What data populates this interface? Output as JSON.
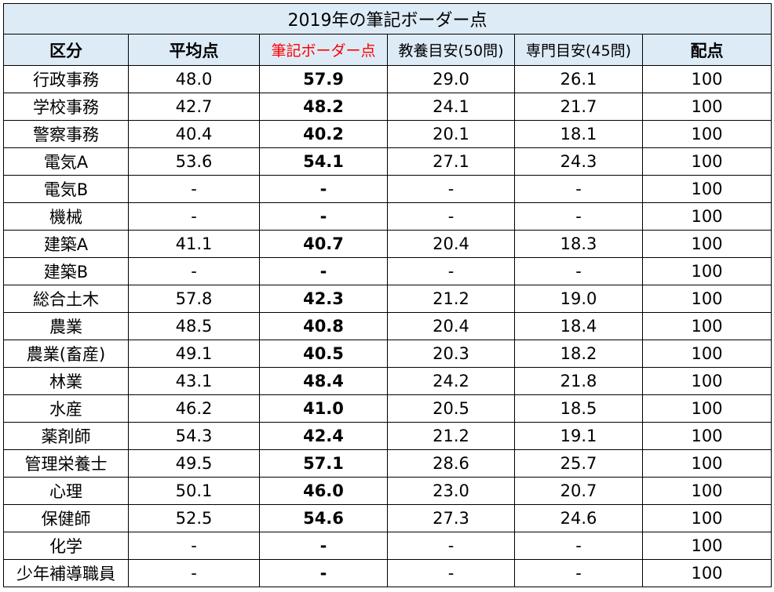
{
  "table": {
    "title": "2019年の筆記ボーダー点",
    "headers": [
      "区分",
      "平均点",
      "筆記ボーダー点",
      "教養目安(50問)",
      "専門目安(45問)",
      "配点"
    ],
    "rows": [
      [
        "行政事務",
        "48.0",
        "57.9",
        "29.0",
        "26.1",
        "100"
      ],
      [
        "学校事務",
        "42.7",
        "48.2",
        "24.1",
        "21.7",
        "100"
      ],
      [
        "警察事務",
        "40.4",
        "40.2",
        "20.1",
        "18.1",
        "100"
      ],
      [
        "電気A",
        "53.6",
        "54.1",
        "27.1",
        "24.3",
        "100"
      ],
      [
        "電気B",
        "-",
        "-",
        "-",
        "-",
        "100"
      ],
      [
        "機械",
        "-",
        "-",
        "-",
        "-",
        "100"
      ],
      [
        "建築A",
        "41.1",
        "40.7",
        "20.4",
        "18.3",
        "100"
      ],
      [
        "建築B",
        "-",
        "-",
        "-",
        "-",
        "100"
      ],
      [
        "総合土木",
        "57.8",
        "42.3",
        "21.2",
        "19.0",
        "100"
      ],
      [
        "農業",
        "48.5",
        "40.8",
        "20.4",
        "18.4",
        "100"
      ],
      [
        "農業(畜産)",
        "49.1",
        "40.5",
        "20.3",
        "18.2",
        "100"
      ],
      [
        "林業",
        "43.1",
        "48.4",
        "24.2",
        "21.8",
        "100"
      ],
      [
        "水産",
        "46.2",
        "41.0",
        "20.5",
        "18.5",
        "100"
      ],
      [
        "薬剤師",
        "54.3",
        "42.4",
        "21.2",
        "19.1",
        "100"
      ],
      [
        "管理栄養士",
        "49.5",
        "57.1",
        "28.6",
        "25.7",
        "100"
      ],
      [
        "心理",
        "50.1",
        "46.0",
        "23.0",
        "20.7",
        "100"
      ],
      [
        "保健師",
        "52.5",
        "54.6",
        "27.3",
        "24.6",
        "100"
      ],
      [
        "化学",
        "-",
        "-",
        "-",
        "-",
        "100"
      ],
      [
        "少年補導職員",
        "-",
        "-",
        "-",
        "-",
        "100"
      ]
    ]
  }
}
